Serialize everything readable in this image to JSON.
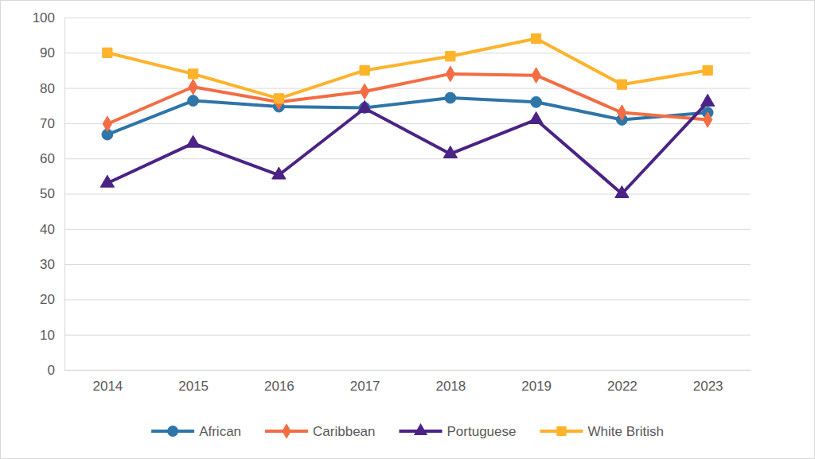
{
  "chart_data": {
    "type": "line",
    "categories": [
      "2014",
      "2015",
      "2016",
      "2017",
      "2018",
      "2019",
      "2022",
      "2023"
    ],
    "series": [
      {
        "name": "African",
        "color": "#2e75a8",
        "marker": "circle",
        "values": [
          66.8,
          76.4,
          74.7,
          74.4,
          77.2,
          76,
          71,
          73
        ]
      },
      {
        "name": "Caribbean",
        "color": "#f26d44",
        "marker": "diamond",
        "values": [
          69.8,
          80.3,
          76,
          79,
          84,
          83.6,
          73,
          71
        ]
      },
      {
        "name": "Portuguese",
        "color": "#4b2385",
        "marker": "triangle",
        "values": [
          53,
          64.3,
          55.3,
          74.2,
          61.3,
          71,
          50,
          76
        ]
      },
      {
        "name": "White British",
        "color": "#fdb32b",
        "marker": "square",
        "values": [
          90,
          84,
          77,
          85,
          89,
          94,
          81,
          85
        ]
      }
    ],
    "ylim": [
      0,
      100
    ],
    "yticks": [
      0,
      10,
      20,
      30,
      40,
      50,
      60,
      70,
      80,
      90,
      100
    ],
    "grid": true,
    "legend": "bottom"
  }
}
